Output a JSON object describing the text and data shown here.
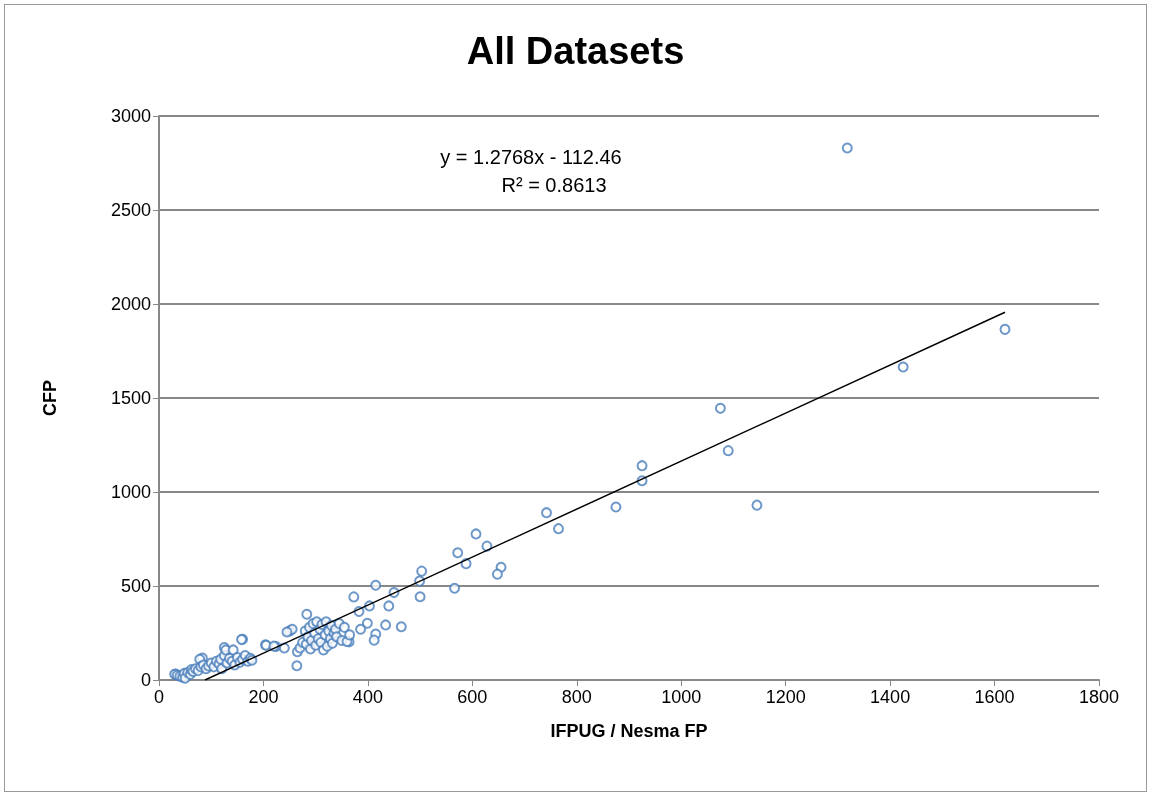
{
  "chart_data": {
    "type": "scatter",
    "title": "All Datasets",
    "xlabel": "IFPUG / Nesma FP",
    "ylabel": "CFP",
    "annotations": [
      "y = 1.2768x - 112.46",
      "R² = 0.8613"
    ],
    "xlim": [
      0,
      1800
    ],
    "xticks": [
      0,
      200,
      400,
      600,
      800,
      1000,
      1200,
      1400,
      1600,
      1800
    ],
    "ylim": [
      0,
      3000
    ],
    "yticks": [
      0,
      500,
      1000,
      1500,
      2000,
      2500,
      3000
    ],
    "grid": "y",
    "marker": "circle",
    "series": [
      {
        "color": "#4a7ebb",
        "x": [
          1318,
          1620,
          1425,
          1075,
          1090,
          1145,
          925,
          925,
          875,
          742,
          765,
          607,
          572,
          588,
          628,
          655,
          648,
          566,
          503,
          499,
          500,
          415,
          450,
          373,
          440,
          403,
          383,
          434,
          464,
          283,
          399,
          415,
          412,
          364,
          386,
          250,
          255,
          204,
          224,
          264,
          160,
          125,
          83,
          32,
          30,
          35,
          40,
          45,
          48,
          50,
          55,
          60,
          62,
          65,
          70,
          75,
          78,
          80,
          85,
          90,
          95,
          100,
          105,
          110,
          115,
          118,
          120,
          125,
          128,
          130,
          135,
          140,
          142,
          145,
          150,
          155,
          158,
          160,
          165,
          170,
          175,
          178,
          205,
          220,
          240,
          245,
          265,
          270,
          275,
          280,
          282,
          285,
          288,
          290,
          292,
          295,
          298,
          300,
          302,
          305,
          308,
          310,
          312,
          315,
          318,
          320,
          322,
          325,
          328,
          330,
          332,
          335,
          338,
          340,
          345,
          350,
          355,
          360,
          365
        ],
        "values": [
          2830,
          1865,
          1665,
          1445,
          1220,
          930,
          1140,
          1060,
          920,
          890,
          805,
          777,
          677,
          619,
          712,
          600,
          563,
          488,
          579,
          526,
          443,
          504,
          465,
          442,
          394,
          394,
          364,
          293,
          283,
          350,
          302,
          244,
          212,
          203,
          270,
          261,
          270,
          187,
          178,
          76,
          217,
          173,
          117,
          32,
          30,
          25,
          20,
          15,
          35,
          10,
          40,
          30,
          55,
          45,
          60,
          50,
          110,
          70,
          80,
          60,
          75,
          90,
          70,
          100,
          85,
          110,
          60,
          130,
          160,
          90,
          115,
          100,
          160,
          80,
          120,
          95,
          215,
          110,
          130,
          100,
          115,
          105,
          185,
          180,
          170,
          255,
          150,
          170,
          200,
          260,
          190,
          230,
          280,
          165,
          210,
          300,
          250,
          185,
          310,
          220,
          270,
          200,
          295,
          160,
          240,
          310,
          180,
          260,
          220,
          290,
          195,
          250,
          270,
          230,
          300,
          210,
          280,
          205,
          240
        ]
      },
      {
        "type": "line",
        "marker": "none",
        "color": "#000000",
        "x": [
          88,
          1620
        ],
        "values": [
          0,
          1956
        ]
      }
    ]
  }
}
